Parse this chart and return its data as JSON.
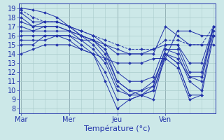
{
  "bg_color": "#cce8e8",
  "grid_color": "#aacccc",
  "line_color": "#2233aa",
  "marker_color": "#2233aa",
  "xlabel": "Température (°c)",
  "xtick_labels": [
    "Mar",
    "Mer",
    "Jeu",
    "Ven"
  ],
  "xtick_positions": [
    0,
    24,
    48,
    72
  ],
  "ylim": [
    7.5,
    19.5
  ],
  "xlim": [
    -1,
    97
  ],
  "yticks": [
    8,
    9,
    10,
    11,
    12,
    13,
    14,
    15,
    16,
    17,
    18,
    19
  ],
  "lines": [
    [
      0,
      19,
      6,
      18.8,
      12,
      18.5,
      18,
      18,
      24,
      17,
      30,
      16,
      36,
      15.5,
      42,
      15,
      48,
      14.5,
      54,
      14,
      60,
      14,
      66,
      14,
      72,
      17,
      78,
      16,
      84,
      15,
      90,
      15,
      96,
      15
    ],
    [
      0,
      18.8,
      6,
      18,
      12,
      17.5,
      18,
      17.5,
      24,
      17,
      30,
      16.5,
      36,
      16,
      42,
      15.5,
      48,
      15,
      54,
      14.5,
      60,
      14.5,
      66,
      14.5,
      72,
      15.5,
      78,
      15.5,
      84,
      15,
      90,
      15,
      96,
      17
    ],
    [
      0,
      18.5,
      6,
      17.5,
      12,
      17.5,
      18,
      17.5,
      24,
      17,
      30,
      16.5,
      36,
      16,
      42,
      15,
      48,
      14,
      54,
      14,
      60,
      14,
      66,
      14.5,
      72,
      15,
      78,
      15,
      84,
      13,
      90,
      13,
      96,
      17
    ],
    [
      0,
      18,
      6,
      17,
      12,
      17,
      18,
      17,
      24,
      16.5,
      30,
      16,
      36,
      15.5,
      42,
      14.5,
      48,
      12,
      54,
      11,
      60,
      11,
      66,
      11.5,
      72,
      15,
      78,
      15,
      84,
      12,
      90,
      12,
      96,
      17
    ],
    [
      0,
      17.5,
      6,
      17,
      12,
      17.5,
      18,
      17.5,
      24,
      17,
      30,
      16,
      36,
      15.5,
      42,
      14,
      48,
      11,
      54,
      10,
      60,
      10,
      66,
      11,
      72,
      14,
      78,
      13.5,
      84,
      11.5,
      90,
      11.5,
      96,
      17
    ],
    [
      0,
      17,
      6,
      16.5,
      12,
      17,
      18,
      17,
      24,
      16.5,
      30,
      16,
      36,
      15,
      42,
      13.5,
      48,
      10.5,
      54,
      9.5,
      60,
      10,
      66,
      10.5,
      72,
      14.5,
      78,
      14.5,
      84,
      11.5,
      90,
      11,
      96,
      17
    ],
    [
      0,
      16.5,
      6,
      16.5,
      12,
      16.5,
      18,
      16.5,
      24,
      16.5,
      30,
      15.5,
      36,
      14.5,
      42,
      13,
      48,
      10,
      54,
      9.5,
      60,
      9.5,
      66,
      10.5,
      72,
      14.5,
      78,
      14,
      84,
      11,
      90,
      10,
      96,
      16.5
    ],
    [
      0,
      16,
      6,
      16,
      12,
      16,
      18,
      16,
      24,
      16,
      30,
      15,
      36,
      14,
      42,
      12,
      48,
      9,
      54,
      9,
      60,
      9.5,
      66,
      10,
      72,
      14,
      78,
      13,
      84,
      9.5
    ],
    [
      0,
      15.5,
      6,
      15.5,
      12,
      15.5,
      18,
      16,
      24,
      15.5,
      30,
      14.5,
      36,
      14,
      42,
      11,
      48,
      8,
      54,
      9,
      60,
      9.5,
      66,
      10,
      72,
      13.5,
      78,
      12.5,
      84,
      9,
      90,
      9.5,
      96,
      16
    ],
    [
      0,
      15,
      6,
      15,
      12,
      16,
      18,
      16,
      24,
      16,
      30,
      15.5,
      36,
      15.5,
      42,
      14.5,
      48,
      11,
      54,
      10,
      60,
      9.5,
      66,
      9,
      72,
      14,
      78,
      13,
      84,
      9.5,
      90,
      9.5
    ],
    [
      0,
      14,
      6,
      14.5,
      12,
      15,
      18,
      15,
      24,
      15,
      30,
      14.5,
      36,
      14,
      42,
      13.5,
      48,
      13,
      54,
      13,
      60,
      13,
      66,
      13.5,
      72,
      13.5,
      78,
      16.5,
      84,
      16.5,
      90,
      16,
      96,
      16
    ]
  ]
}
